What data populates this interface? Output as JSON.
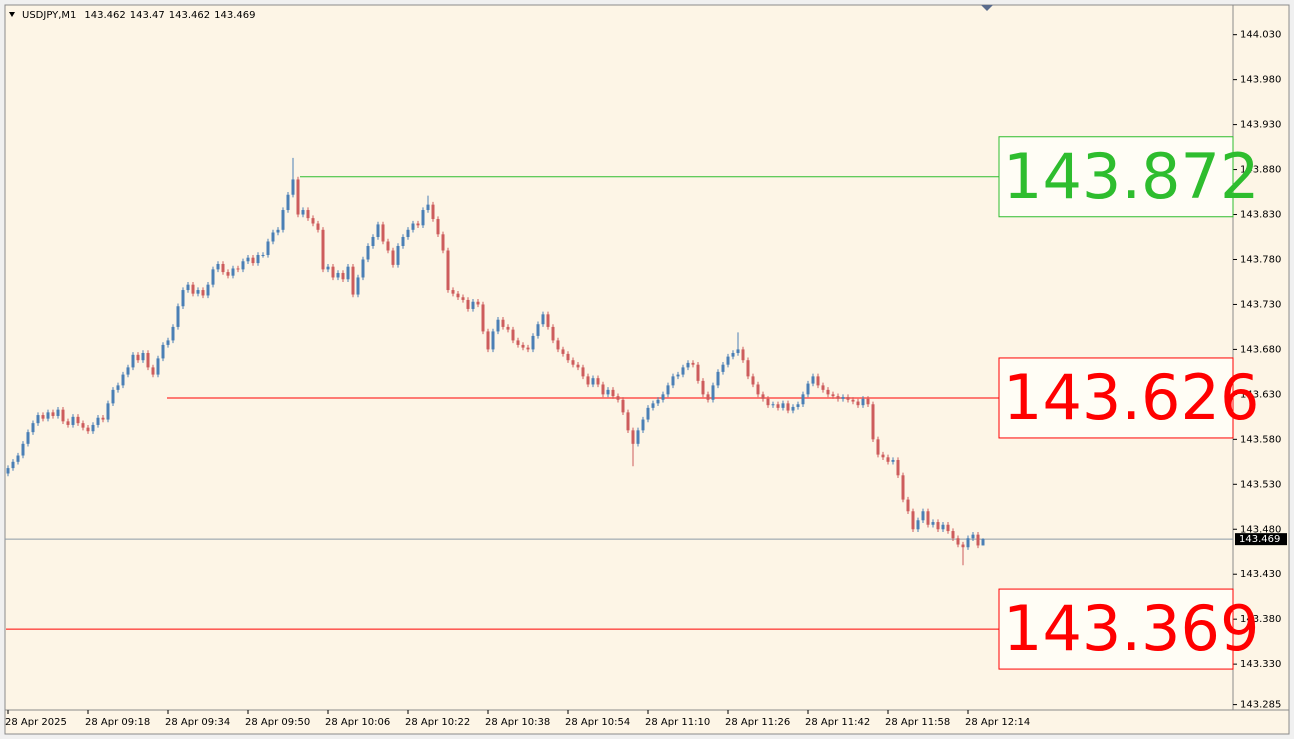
{
  "chart_data": {
    "type": "candlestick",
    "symbol": "USDJPY,M1",
    "ylim": [
      143.279,
      144.063
    ],
    "yticks": [
      {
        "value": 144.03,
        "label": "144.030"
      },
      {
        "value": 143.98,
        "label": "143.980"
      },
      {
        "value": 143.93,
        "label": "143.930"
      },
      {
        "value": 143.88,
        "label": "143.880"
      },
      {
        "value": 143.83,
        "label": "143.830"
      },
      {
        "value": 143.78,
        "label": "143.780"
      },
      {
        "value": 143.73,
        "label": "143.730"
      },
      {
        "value": 143.68,
        "label": "143.680"
      },
      {
        "value": 143.63,
        "label": "143.630"
      },
      {
        "value": 143.58,
        "label": "143.580"
      },
      {
        "value": 143.53,
        "label": "143.530"
      },
      {
        "value": 143.48,
        "label": "143.480"
      },
      {
        "value": 143.43,
        "label": "143.430"
      },
      {
        "value": 143.38,
        "label": "143.380"
      },
      {
        "value": 143.33,
        "label": "143.330"
      },
      143.285
    ],
    "up_color": "#4a7fb5",
    "down_color": "#cd5c5c",
    "levels": [
      {
        "value": 143.872,
        "color": "#2ebd2e"
      },
      {
        "value": 143.626,
        "color": "#ff0000"
      },
      {
        "value": 143.369,
        "color": "#ff0000"
      }
    ],
    "categories": [
      "28 Apr 2025",
      null,
      null,
      null,
      null,
      null,
      null,
      null,
      null,
      null,
      null,
      null,
      null,
      null,
      null,
      null,
      "28 Apr 09:18",
      null,
      null,
      null,
      null,
      null,
      null,
      null,
      null,
      null,
      null,
      null,
      null,
      null,
      null,
      null,
      "28 Apr 09:34",
      null,
      null,
      null,
      null,
      null,
      null,
      null,
      null,
      null,
      null,
      null,
      null,
      null,
      null,
      null,
      "28 Apr 09:50",
      null,
      null,
      null,
      null,
      null,
      null,
      null,
      null,
      null,
      null,
      null,
      null,
      null,
      null,
      null,
      "28 Apr 10:06",
      null,
      null,
      null,
      null,
      null,
      null,
      null,
      null,
      null,
      null,
      null,
      null,
      null,
      null,
      null,
      "28 Apr 10:22",
      null,
      null,
      null,
      null,
      null,
      null,
      null,
      null,
      null,
      null,
      null,
      null,
      null,
      null,
      null,
      "28 Apr 10:38",
      null,
      null,
      null,
      null,
      null,
      null,
      null,
      null,
      null,
      null,
      null,
      null,
      null,
      null,
      null,
      "28 Apr 10:54",
      null,
      null,
      null,
      null,
      null,
      null,
      null,
      null,
      null,
      null,
      null,
      null,
      null,
      null,
      null,
      "28 Apr 11:10",
      null,
      null,
      null,
      null,
      null,
      null,
      null,
      null,
      null,
      null,
      null,
      null,
      null,
      null,
      null,
      "28 Apr 11:26",
      null,
      null,
      null,
      null,
      null,
      null,
      null,
      null,
      null,
      null,
      null,
      null,
      null,
      null,
      null,
      "28 Apr 11:42",
      null,
      null,
      null,
      null,
      null,
      null,
      null,
      null,
      null,
      null,
      null,
      null,
      null,
      null,
      null,
      "28 Apr 11:58",
      null,
      null,
      null,
      null,
      null,
      null,
      null,
      null,
      null,
      null,
      null,
      null,
      null,
      null,
      null,
      "28 Apr 12:14",
      null,
      null,
      null
    ],
    "open": [
      143.542,
      143.548,
      143.555,
      143.562,
      143.575,
      143.588,
      143.598,
      143.607,
      143.603,
      143.61,
      143.606,
      143.613,
      143.6,
      143.596,
      143.605,
      143.598,
      143.593,
      143.589,
      143.596,
      143.604,
      143.602,
      143.62,
      143.635,
      143.64,
      143.652,
      143.66,
      143.674,
      143.668,
      143.676,
      143.66,
      143.652,
      143.67,
      143.685,
      143.69,
      143.705,
      143.728,
      143.746,
      143.752,
      143.742,
      143.746,
      143.74,
      143.752,
      143.769,
      143.775,
      143.766,
      143.762,
      143.77,
      143.769,
      143.778,
      143.782,
      143.776,
      143.785,
      143.785,
      143.8,
      143.81,
      143.813,
      143.835,
      143.852,
      143.869,
      143.83,
      143.835,
      143.826,
      143.82,
      143.813,
      143.769,
      143.772,
      143.76,
      143.765,
      143.758,
      143.772,
      143.741,
      143.76,
      143.78,
      143.795,
      143.805,
      143.819,
      143.8,
      143.79,
      143.774,
      143.795,
      143.805,
      143.813,
      143.82,
      143.818,
      143.835,
      143.841,
      143.825,
      143.808,
      143.79,
      143.746,
      143.742,
      143.738,
      143.735,
      143.725,
      143.733,
      143.73,
      143.7,
      143.68,
      143.7,
      143.713,
      143.705,
      143.702,
      143.69,
      143.685,
      143.682,
      143.68,
      143.695,
      143.708,
      143.719,
      143.705,
      143.69,
      143.68,
      143.675,
      143.668,
      143.663,
      143.66,
      143.65,
      143.641,
      143.648,
      143.641,
      143.63,
      143.635,
      143.628,
      143.624,
      143.61,
      143.59,
      143.575,
      143.59,
      143.602,
      143.615,
      143.62,
      143.624,
      143.63,
      143.64,
      143.65,
      143.652,
      143.66,
      143.665,
      143.663,
      143.645,
      143.63,
      143.624,
      143.64,
      143.655,
      143.663,
      143.672,
      143.676,
      143.68,
      143.668,
      143.65,
      143.641,
      143.63,
      143.625,
      143.618,
      143.619,
      143.615,
      143.62,
      143.612,
      143.616,
      143.619,
      143.63,
      143.642,
      143.65,
      143.64,
      143.635,
      143.63,
      143.628,
      143.625,
      143.627,
      143.624,
      143.622,
      143.618,
      143.625,
      143.619,
      143.58,
      143.563,
      143.56,
      143.555,
      143.557,
      143.54,
      143.513,
      143.5,
      143.48,
      143.49,
      143.5,
      143.485,
      143.488,
      143.48,
      143.485,
      143.478,
      143.47,
      143.463,
      143.46,
      143.47,
      143.474,
      143.462
    ],
    "high": [
      143.551,
      143.558,
      143.565,
      143.578,
      143.591,
      143.601,
      143.61,
      143.61,
      143.613,
      143.613,
      143.616,
      143.616,
      143.603,
      143.608,
      143.608,
      143.601,
      143.596,
      143.599,
      143.607,
      143.607,
      143.623,
      143.638,
      143.643,
      143.655,
      143.663,
      143.677,
      143.677,
      143.679,
      143.679,
      143.663,
      143.673,
      143.688,
      143.693,
      143.708,
      143.731,
      143.749,
      143.755,
      143.755,
      143.749,
      143.749,
      143.755,
      143.772,
      143.778,
      143.778,
      143.769,
      143.773,
      143.773,
      143.781,
      143.785,
      143.785,
      143.788,
      143.788,
      143.803,
      143.813,
      143.816,
      143.838,
      143.855,
      143.893,
      143.872,
      143.838,
      143.838,
      143.829,
      143.823,
      143.816,
      143.775,
      143.775,
      143.768,
      143.768,
      143.775,
      143.775,
      143.763,
      143.783,
      143.798,
      143.808,
      143.822,
      143.822,
      143.803,
      143.793,
      143.798,
      143.808,
      143.816,
      143.823,
      143.823,
      143.838,
      143.851,
      143.844,
      143.828,
      143.811,
      143.793,
      143.749,
      143.745,
      143.741,
      143.738,
      143.736,
      143.736,
      143.733,
      143.703,
      143.703,
      143.716,
      143.716,
      143.708,
      143.705,
      143.693,
      143.688,
      143.685,
      143.698,
      143.711,
      143.722,
      143.722,
      143.708,
      143.693,
      143.683,
      143.678,
      143.671,
      143.666,
      143.663,
      143.653,
      143.651,
      143.651,
      143.644,
      143.638,
      143.638,
      143.631,
      143.627,
      143.613,
      143.593,
      143.593,
      143.605,
      143.618,
      143.623,
      143.627,
      143.633,
      143.643,
      143.653,
      143.655,
      143.663,
      143.668,
      143.668,
      143.666,
      143.648,
      143.633,
      143.643,
      143.658,
      143.666,
      143.675,
      143.679,
      143.699,
      143.683,
      143.671,
      143.653,
      143.644,
      143.633,
      143.628,
      143.622,
      143.622,
      143.623,
      143.623,
      143.619,
      143.622,
      143.633,
      143.645,
      143.653,
      143.653,
      143.643,
      143.638,
      143.633,
      143.631,
      143.63,
      143.63,
      143.627,
      143.625,
      143.628,
      143.628,
      143.622,
      143.583,
      143.566,
      143.563,
      143.56,
      143.56,
      143.543,
      143.516,
      143.503,
      143.493,
      143.503,
      143.503,
      143.491,
      143.491,
      143.488,
      143.488,
      143.481,
      143.473,
      143.466,
      143.473,
      143.477,
      143.477,
      143.47
    ],
    "low": [
      143.539,
      143.545,
      143.552,
      143.559,
      143.572,
      143.585,
      143.595,
      143.6,
      143.6,
      143.603,
      143.603,
      143.597,
      143.593,
      143.593,
      143.595,
      143.59,
      143.586,
      143.586,
      143.593,
      143.599,
      143.599,
      143.617,
      143.632,
      143.637,
      143.649,
      143.657,
      143.665,
      143.665,
      143.657,
      143.649,
      143.649,
      143.667,
      143.682,
      143.687,
      143.702,
      143.725,
      143.743,
      143.739,
      143.739,
      143.737,
      143.737,
      143.749,
      143.766,
      143.763,
      143.759,
      143.759,
      143.766,
      143.766,
      143.775,
      143.773,
      143.773,
      143.782,
      143.782,
      143.797,
      143.807,
      143.81,
      143.832,
      143.849,
      143.827,
      143.827,
      143.823,
      143.817,
      143.81,
      143.766,
      143.766,
      143.757,
      143.757,
      143.755,
      143.755,
      143.738,
      143.738,
      143.757,
      143.777,
      143.792,
      143.802,
      143.797,
      143.787,
      143.771,
      143.771,
      143.792,
      143.802,
      143.81,
      143.815,
      143.815,
      143.832,
      143.822,
      143.805,
      143.787,
      143.743,
      143.739,
      143.735,
      143.732,
      143.722,
      143.722,
      143.727,
      143.697,
      143.677,
      143.677,
      143.697,
      143.702,
      143.699,
      143.687,
      143.682,
      143.679,
      143.677,
      143.677,
      143.692,
      143.705,
      143.702,
      143.687,
      143.677,
      143.672,
      143.665,
      143.66,
      143.657,
      143.647,
      143.638,
      143.638,
      143.638,
      143.627,
      143.627,
      143.625,
      143.621,
      143.607,
      143.587,
      143.55,
      143.572,
      143.587,
      143.599,
      143.612,
      143.617,
      143.621,
      143.627,
      143.637,
      143.647,
      143.649,
      143.657,
      143.66,
      143.642,
      143.627,
      143.621,
      143.621,
      143.637,
      143.652,
      143.66,
      143.669,
      143.673,
      143.665,
      143.647,
      143.638,
      143.627,
      143.622,
      143.615,
      143.615,
      143.612,
      143.612,
      143.609,
      143.609,
      143.613,
      143.616,
      143.627,
      143.639,
      143.637,
      143.632,
      143.627,
      143.625,
      143.622,
      143.622,
      143.621,
      143.619,
      143.615,
      143.615,
      143.616,
      143.577,
      143.56,
      143.557,
      143.552,
      143.552,
      143.537,
      143.51,
      143.497,
      143.477,
      143.477,
      143.487,
      143.482,
      143.482,
      143.477,
      143.477,
      143.475,
      143.467,
      143.46,
      143.44,
      143.457,
      143.467,
      143.459,
      143.462
    ],
    "close": [
      143.548,
      143.555,
      143.562,
      143.575,
      143.588,
      143.598,
      143.607,
      143.603,
      143.61,
      143.606,
      143.613,
      143.6,
      143.596,
      143.605,
      143.598,
      143.593,
      143.589,
      143.596,
      143.604,
      143.602,
      143.62,
      143.635,
      143.64,
      143.652,
      143.66,
      143.674,
      143.668,
      143.676,
      143.66,
      143.652,
      143.67,
      143.685,
      143.69,
      143.705,
      143.728,
      143.746,
      143.752,
      143.742,
      143.746,
      143.74,
      143.752,
      143.769,
      143.775,
      143.766,
      143.762,
      143.77,
      143.769,
      143.778,
      143.782,
      143.776,
      143.785,
      143.785,
      143.8,
      143.81,
      143.813,
      143.835,
      143.852,
      143.869,
      143.83,
      143.835,
      143.826,
      143.82,
      143.813,
      143.769,
      143.772,
      143.76,
      143.765,
      143.758,
      143.772,
      143.741,
      143.76,
      143.78,
      143.795,
      143.805,
      143.819,
      143.8,
      143.79,
      143.774,
      143.795,
      143.805,
      143.813,
      143.82,
      143.818,
      143.835,
      143.841,
      143.825,
      143.808,
      143.79,
      143.746,
      143.742,
      143.738,
      143.735,
      143.725,
      143.733,
      143.73,
      143.7,
      143.68,
      143.7,
      143.713,
      143.705,
      143.702,
      143.69,
      143.685,
      143.682,
      143.68,
      143.695,
      143.708,
      143.719,
      143.705,
      143.69,
      143.68,
      143.675,
      143.668,
      143.663,
      143.66,
      143.65,
      143.641,
      143.648,
      143.641,
      143.63,
      143.635,
      143.628,
      143.624,
      143.61,
      143.59,
      143.575,
      143.59,
      143.602,
      143.615,
      143.62,
      143.624,
      143.63,
      143.64,
      143.65,
      143.652,
      143.66,
      143.665,
      143.663,
      143.645,
      143.63,
      143.624,
      143.64,
      143.655,
      143.663,
      143.672,
      143.676,
      143.68,
      143.668,
      143.65,
      143.641,
      143.63,
      143.625,
      143.618,
      143.619,
      143.615,
      143.62,
      143.612,
      143.616,
      143.619,
      143.63,
      143.642,
      143.65,
      143.64,
      143.635,
      143.63,
      143.628,
      143.625,
      143.627,
      143.624,
      143.622,
      143.618,
      143.625,
      143.619,
      143.58,
      143.563,
      143.56,
      143.555,
      143.557,
      143.54,
      143.513,
      143.5,
      143.48,
      143.49,
      143.5,
      143.485,
      143.488,
      143.48,
      143.485,
      143.478,
      143.47,
      143.463,
      143.46,
      143.47,
      143.474,
      143.462,
      143.469
    ]
  }
}
